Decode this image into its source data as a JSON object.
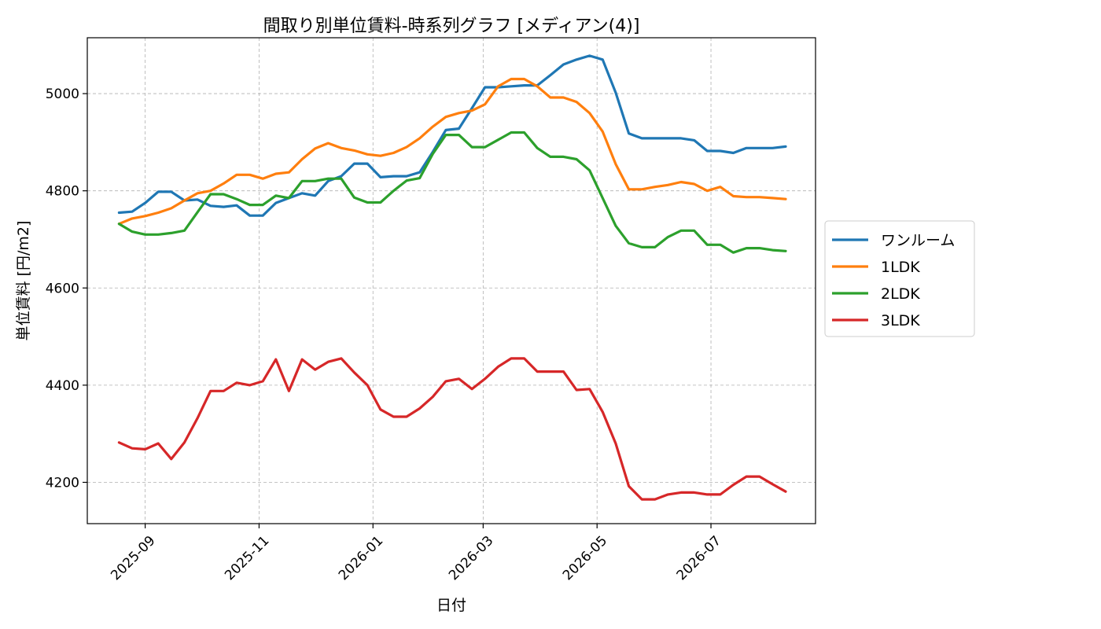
{
  "chart_data": {
    "type": "line",
    "title": "間取り別単位賃料-時系列グラフ [メディアン(4)]",
    "xlabel": "日付",
    "ylabel": "単位賃料 [円/m2]",
    "x_range": [
      "2025-08-01",
      "2026-08-26"
    ],
    "ylim": [
      4115,
      5115
    ],
    "y_ticks": [
      4200,
      4400,
      4600,
      4800,
      5000
    ],
    "x_ticks": [
      {
        "date": "2025-09-01",
        "label": "2025-09"
      },
      {
        "date": "2025-11-01",
        "label": "2025-11"
      },
      {
        "date": "2026-01-01",
        "label": "2026-01"
      },
      {
        "date": "2026-03-01",
        "label": "2026-03"
      },
      {
        "date": "2026-05-01",
        "label": "2026-05"
      },
      {
        "date": "2026-07-01",
        "label": "2026-07"
      }
    ],
    "grid": true,
    "legend_position": "outside-right",
    "x": [
      "2025-08-18",
      "2025-08-25",
      "2025-09-01",
      "2025-09-08",
      "2025-09-15",
      "2025-09-22",
      "2025-09-29",
      "2025-10-06",
      "2025-10-13",
      "2025-10-20",
      "2025-10-27",
      "2025-11-03",
      "2025-11-10",
      "2025-11-17",
      "2025-11-24",
      "2025-12-01",
      "2025-12-08",
      "2025-12-15",
      "2025-12-22",
      "2025-12-29",
      "2026-01-05",
      "2026-01-12",
      "2026-01-19",
      "2026-01-26",
      "2026-02-02",
      "2026-02-09",
      "2026-02-16",
      "2026-02-23",
      "2026-03-02",
      "2026-03-09",
      "2026-03-16",
      "2026-03-23",
      "2026-03-30",
      "2026-04-06",
      "2026-04-13",
      "2026-04-20",
      "2026-04-27",
      "2026-05-04",
      "2026-05-11",
      "2026-05-18",
      "2026-05-25",
      "2026-06-01",
      "2026-06-08",
      "2026-06-15",
      "2026-06-22",
      "2026-06-29",
      "2026-07-06",
      "2026-07-13",
      "2026-07-20",
      "2026-07-27",
      "2026-08-03",
      "2026-08-10"
    ],
    "series": [
      {
        "name": "ワンルーム",
        "color": "#1f77b4",
        "values": [
          4755,
          4757,
          4775,
          4798,
          4798,
          4780,
          4782,
          4769,
          4767,
          4770,
          4749,
          4749,
          4775,
          4785,
          4795,
          4790,
          4820,
          4830,
          4856,
          4856,
          4828,
          4830,
          4830,
          4838,
          4880,
          4925,
          4928,
          4970,
          5013,
          5013,
          5015,
          5017,
          5017,
          5038,
          5060,
          5070,
          5078,
          5070,
          5002,
          4918,
          4908,
          4908,
          4908,
          4908,
          4904,
          4882,
          4882,
          4878,
          4888,
          4888,
          4888,
          4891
        ]
      },
      {
        "name": "1LDK",
        "color": "#ff7f0e",
        "values": [
          4732,
          4743,
          4748,
          4755,
          4764,
          4780,
          4795,
          4800,
          4815,
          4833,
          4833,
          4825,
          4835,
          4838,
          4865,
          4887,
          4898,
          4888,
          4883,
          4875,
          4872,
          4878,
          4890,
          4908,
          4932,
          4952,
          4960,
          4965,
          4978,
          5015,
          5030,
          5030,
          5015,
          4992,
          4992,
          4983,
          4960,
          4922,
          4855,
          4803,
          4803,
          4808,
          4812,
          4818,
          4814,
          4800,
          4808,
          4789,
          4787,
          4787,
          4785,
          4783
        ]
      },
      {
        "name": "2LDK",
        "color": "#2ca02c",
        "values": [
          4732,
          4716,
          4710,
          4710,
          4713,
          4718,
          4756,
          4793,
          4793,
          4783,
          4771,
          4771,
          4790,
          4785,
          4820,
          4820,
          4825,
          4825,
          4786,
          4776,
          4776,
          4800,
          4821,
          4826,
          4876,
          4915,
          4915,
          4890,
          4890,
          4905,
          4920,
          4920,
          4888,
          4870,
          4870,
          4865,
          4842,
          4785,
          4728,
          4692,
          4684,
          4684,
          4705,
          4718,
          4718,
          4689,
          4689,
          4673,
          4682,
          4682,
          4678,
          4676
        ]
      },
      {
        "name": "3LDK",
        "color": "#d62728",
        "values": [
          4282,
          4270,
          4268,
          4280,
          4248,
          4282,
          4332,
          4388,
          4388,
          4405,
          4400,
          4408,
          4453,
          4388,
          4453,
          4432,
          4448,
          4455,
          4426,
          4400,
          4350,
          4335,
          4335,
          4352,
          4376,
          4408,
          4413,
          4392,
          4413,
          4438,
          4455,
          4455,
          4428,
          4428,
          4428,
          4390,
          4392,
          4345,
          4280,
          4192,
          4165,
          4165,
          4175,
          4179,
          4179,
          4175,
          4175,
          4195,
          4212,
          4212,
          4196,
          4181
        ]
      }
    ]
  }
}
